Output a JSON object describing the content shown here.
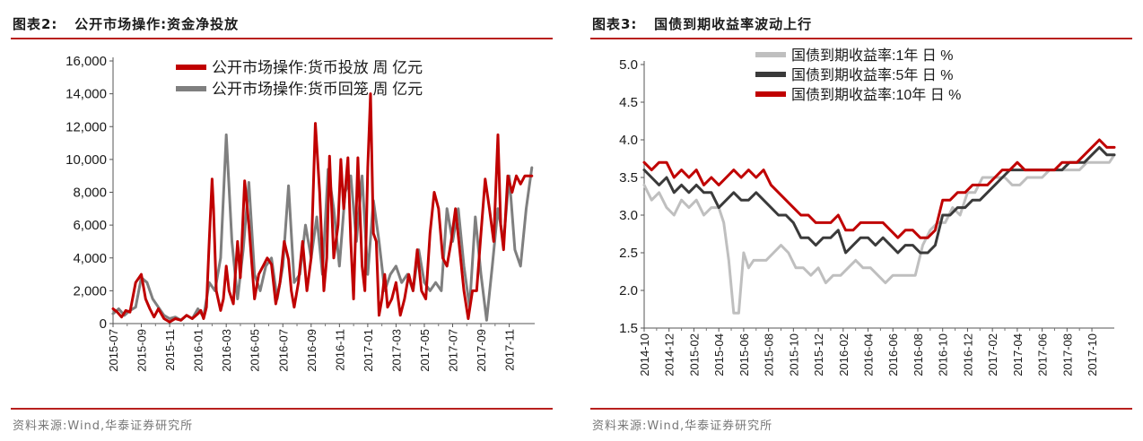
{
  "left": {
    "title_label": "图表2:",
    "title_text": "公开市场操作:资金净投放",
    "source": "资料来源:Wind,华泰证券研究所"
  },
  "right": {
    "title_label": "图表3:",
    "title_text": "国债到期收益率波动上行",
    "source": "资料来源:Wind,华泰证券研究所"
  },
  "chart_data": [
    {
      "type": "line",
      "title": "公开市场操作:资金净投放",
      "x_tick_labels": [
        "2015-07",
        "2015-09",
        "2015-11",
        "2016-01",
        "2016-03",
        "2016-05",
        "2016-07",
        "2016-09",
        "2016-11",
        "2017-01",
        "2017-03",
        "2017-05",
        "2017-07",
        "2017-09",
        "2017-11"
      ],
      "y_tick_labels": [
        "0",
        "2,000",
        "4,000",
        "6,000",
        "8,000",
        "10,000",
        "12,000",
        "14,000",
        "16,000"
      ],
      "ylim": [
        0,
        16000
      ],
      "x_range": [
        0,
        14.9
      ],
      "legend_position": "top-center",
      "grid": false,
      "series": [
        {
          "name": "公开市场操作:货币投放 周 亿元",
          "color": "#c00000",
          "x": [
            0,
            0.15,
            0.3,
            0.45,
            0.6,
            0.8,
            1.0,
            1.15,
            1.3,
            1.45,
            1.6,
            1.8,
            2.0,
            2.2,
            2.4,
            2.6,
            2.8,
            3.0,
            3.1,
            3.2,
            3.3,
            3.4,
            3.5,
            3.55,
            3.65,
            3.8,
            3.9,
            4.0,
            4.1,
            4.25,
            4.4,
            4.5,
            4.65,
            4.8,
            5.0,
            5.15,
            5.3,
            5.45,
            5.6,
            5.75,
            5.9,
            6.05,
            6.2,
            6.3,
            6.4,
            6.55,
            6.7,
            6.85,
            7.0,
            7.15,
            7.3,
            7.45,
            7.55,
            7.65,
            7.8,
            7.95,
            8.05,
            8.15,
            8.3,
            8.4,
            8.5,
            8.65,
            8.8,
            8.9,
            9.0,
            9.1,
            9.2,
            9.3,
            9.4,
            9.5,
            9.6,
            9.7,
            9.85,
            10.0,
            10.15,
            10.3,
            10.45,
            10.6,
            10.75,
            10.9,
            11.05,
            11.2,
            11.35,
            11.5,
            11.65,
            11.8,
            11.95,
            12.1,
            12.25,
            12.4,
            12.55,
            12.7,
            12.85,
            13.0,
            13.15,
            13.3,
            13.45,
            13.6,
            13.7,
            13.8,
            13.95,
            14.1,
            14.25,
            14.4,
            14.55,
            14.7,
            14.8
          ],
          "y": [
            900,
            700,
            400,
            800,
            700,
            2500,
            3000,
            1500,
            900,
            400,
            900,
            300,
            100,
            300,
            200,
            500,
            300,
            600,
            800,
            300,
            1000,
            5000,
            8800,
            7000,
            2000,
            800,
            1500,
            3500,
            2000,
            1200,
            5000,
            2800,
            8700,
            6000,
            1500,
            3000,
            3500,
            4000,
            3600,
            1200,
            2500,
            5000,
            3900,
            2000,
            1000,
            2500,
            5000,
            2000,
            4000,
            12200,
            8000,
            2000,
            4000,
            10200,
            4000,
            6000,
            10000,
            7000,
            10100,
            5000,
            1500,
            10100,
            3500,
            2000,
            9500,
            14000,
            5500,
            5000,
            500,
            1500,
            3000,
            1000,
            1500,
            2500,
            500,
            1500,
            3000,
            2000,
            4500,
            2000,
            1500,
            5500,
            8000,
            7000,
            4000,
            3500,
            5000,
            7000,
            4500,
            2000,
            300,
            2000,
            2000,
            5500,
            8800,
            7000,
            5000,
            11500,
            6000,
            4500,
            9000,
            8000,
            9000,
            8500,
            9000,
            9000,
            9000
          ],
          "y_shown": [
            900,
            700,
            400,
            800,
            700,
            2500,
            3000,
            1500,
            900,
            400,
            900,
            300,
            100,
            300,
            200,
            500,
            300,
            600,
            800,
            300,
            1000,
            5000,
            8800,
            7000,
            2000,
            800,
            1500,
            3500,
            2000,
            1200,
            5000,
            2800,
            8700,
            6000,
            1500,
            3000,
            3500,
            4000,
            3600,
            1200,
            2500,
            5000,
            3900,
            2000,
            1000,
            2500,
            5000,
            2000,
            4000,
            12200,
            8000,
            2000,
            4000,
            10200,
            4000,
            6000,
            10000,
            7000,
            10100,
            5000,
            1500,
            10100,
            3500,
            2000,
            9500,
            14000,
            5500,
            5000,
            500,
            1500,
            3000,
            1000,
            1500,
            2500,
            500,
            1500,
            3000,
            2000,
            4500,
            2000,
            1500,
            5500,
            8000,
            7000,
            4000,
            3500,
            5000,
            7000,
            4500,
            2000,
            300,
            2000,
            2000,
            5500,
            8800,
            7000,
            5000,
            11500,
            6000,
            4500,
            9000,
            8000,
            9000,
            8500,
            9000,
            9000,
            9000
          ]
        },
        {
          "name": "公开市场操作:货币回笼 周 亿元",
          "color": "#7f7f7f",
          "x": [
            0,
            0.2,
            0.4,
            0.6,
            0.8,
            1.0,
            1.2,
            1.4,
            1.6,
            1.8,
            2.0,
            2.2,
            2.4,
            2.6,
            2.8,
            3.0,
            3.2,
            3.4,
            3.6,
            3.8,
            4.0,
            4.2,
            4.4,
            4.6,
            4.8,
            5.0,
            5.2,
            5.4,
            5.6,
            5.8,
            6.0,
            6.2,
            6.4,
            6.6,
            6.8,
            7.0,
            7.2,
            7.4,
            7.6,
            7.8,
            8.0,
            8.2,
            8.4,
            8.6,
            8.8,
            9.0,
            9.2,
            9.4,
            9.6,
            9.8,
            10.0,
            10.2,
            10.4,
            10.6,
            10.8,
            11.0,
            11.2,
            11.4,
            11.6,
            11.8,
            12.0,
            12.2,
            12.4,
            12.6,
            12.8,
            13.0,
            13.2,
            13.4,
            13.6,
            13.8,
            14.0,
            14.2,
            14.4,
            14.6,
            14.8
          ],
          "y": [
            600,
            900,
            500,
            800,
            1000,
            2800,
            2500,
            1500,
            1000,
            500,
            300,
            400,
            200,
            500,
            300,
            900,
            400,
            2500,
            2000,
            4000,
            11500,
            5000,
            1500,
            4500,
            8600,
            3000,
            2000,
            3500,
            4000,
            1500,
            3500,
            8400,
            2500,
            3000,
            6000,
            4000,
            6500,
            3000,
            9400,
            7000,
            3500,
            8000,
            9000,
            5000,
            9000,
            3000,
            7500,
            5000,
            2000,
            3000,
            3500,
            2500,
            3000,
            2000,
            4500,
            2500,
            2000,
            2500,
            2000,
            7000,
            5000,
            7000,
            3500,
            1000,
            6500,
            3000,
            200,
            3500,
            7000,
            5000,
            9000,
            4500,
            3500,
            7000,
            9500
          ]
        }
      ]
    },
    {
      "type": "line",
      "title": "国债到期收益率波动上行",
      "x_tick_labels": [
        "2014-10",
        "2014-12",
        "2015-02",
        "2015-04",
        "2015-06",
        "2015-08",
        "2015-10",
        "2015-12",
        "2016-02",
        "2016-04",
        "2016-06",
        "2016-08",
        "2016-10",
        "2016-12",
        "2017-02",
        "2017-04",
        "2017-06",
        "2017-08",
        "2017-10"
      ],
      "y_tick_labels": [
        "1.5",
        "2.0",
        "2.5",
        "3.0",
        "3.5",
        "4.0",
        "4.5",
        "5.0"
      ],
      "ylim": [
        1.5,
        5.0
      ],
      "x_range": [
        0,
        18.9
      ],
      "legend_position": "top-center",
      "grid": false,
      "series": [
        {
          "name": "国债到期收益率:1年 日 %",
          "color": "#bfbfbf",
          "x": [
            0,
            0.3,
            0.6,
            0.9,
            1.2,
            1.5,
            1.8,
            2.1,
            2.4,
            2.7,
            3.0,
            3.2,
            3.4,
            3.6,
            3.8,
            4.0,
            4.2,
            4.4,
            4.6,
            4.9,
            5.2,
            5.5,
            5.8,
            6.1,
            6.4,
            6.7,
            7.0,
            7.3,
            7.6,
            7.9,
            8.2,
            8.5,
            8.8,
            9.1,
            9.4,
            9.7,
            10.0,
            10.3,
            10.6,
            10.9,
            11.2,
            11.5,
            11.8,
            12.1,
            12.4,
            12.7,
            13.0,
            13.3,
            13.6,
            13.9,
            14.2,
            14.5,
            14.8,
            15.1,
            15.4,
            15.7,
            16.0,
            16.3,
            16.6,
            16.9,
            17.2,
            17.5,
            17.8,
            18.1,
            18.4,
            18.7,
            18.9
          ],
          "y": [
            3.4,
            3.2,
            3.3,
            3.1,
            3.0,
            3.2,
            3.1,
            3.2,
            3.0,
            3.1,
            3.1,
            2.9,
            2.4,
            1.7,
            1.7,
            2.5,
            2.3,
            2.4,
            2.4,
            2.4,
            2.5,
            2.6,
            2.5,
            2.3,
            2.3,
            2.2,
            2.3,
            2.1,
            2.2,
            2.2,
            2.3,
            2.4,
            2.3,
            2.3,
            2.2,
            2.1,
            2.2,
            2.2,
            2.2,
            2.2,
            2.6,
            2.8,
            2.9,
            2.9,
            3.1,
            3.0,
            3.3,
            3.3,
            3.5,
            3.5,
            3.5,
            3.5,
            3.4,
            3.4,
            3.5,
            3.5,
            3.5,
            3.6,
            3.6,
            3.6,
            3.6,
            3.6,
            3.7,
            3.7,
            3.7,
            3.7,
            3.8
          ]
        },
        {
          "name": "国债到期收益率:5年 日 %",
          "color": "#3a3a3a",
          "x": [
            0,
            0.3,
            0.6,
            0.9,
            1.2,
            1.5,
            1.8,
            2.1,
            2.4,
            2.7,
            3.0,
            3.3,
            3.6,
            3.9,
            4.2,
            4.5,
            4.8,
            5.1,
            5.4,
            5.7,
            6.0,
            6.3,
            6.6,
            6.9,
            7.2,
            7.5,
            7.8,
            8.1,
            8.4,
            8.7,
            9.0,
            9.3,
            9.6,
            9.9,
            10.2,
            10.5,
            10.8,
            11.1,
            11.4,
            11.7,
            12.0,
            12.3,
            12.6,
            12.9,
            13.2,
            13.5,
            13.8,
            14.1,
            14.4,
            14.7,
            15.0,
            15.3,
            15.6,
            15.9,
            16.2,
            16.5,
            16.8,
            17.1,
            17.4,
            17.7,
            18.0,
            18.3,
            18.6,
            18.9
          ],
          "y": [
            3.6,
            3.5,
            3.4,
            3.5,
            3.3,
            3.4,
            3.3,
            3.4,
            3.3,
            3.3,
            3.1,
            3.2,
            3.3,
            3.2,
            3.2,
            3.3,
            3.2,
            3.1,
            3.0,
            3.0,
            2.9,
            2.7,
            2.7,
            2.6,
            2.7,
            2.7,
            2.8,
            2.5,
            2.6,
            2.7,
            2.7,
            2.6,
            2.7,
            2.6,
            2.5,
            2.6,
            2.6,
            2.5,
            2.5,
            2.6,
            3.0,
            3.0,
            3.1,
            3.1,
            3.2,
            3.2,
            3.3,
            3.4,
            3.5,
            3.6,
            3.6,
            3.6,
            3.6,
            3.6,
            3.6,
            3.6,
            3.6,
            3.7,
            3.7,
            3.7,
            3.8,
            3.9,
            3.8,
            3.8
          ]
        },
        {
          "name": "国债到期收益率:10年 日 %",
          "color": "#c00000",
          "x": [
            0,
            0.3,
            0.6,
            0.9,
            1.2,
            1.5,
            1.8,
            2.1,
            2.4,
            2.7,
            3.0,
            3.3,
            3.6,
            3.9,
            4.2,
            4.5,
            4.8,
            5.1,
            5.4,
            5.7,
            6.0,
            6.3,
            6.6,
            6.9,
            7.2,
            7.5,
            7.8,
            8.1,
            8.4,
            8.7,
            9.0,
            9.3,
            9.6,
            9.9,
            10.2,
            10.5,
            10.8,
            11.1,
            11.4,
            11.7,
            12.0,
            12.3,
            12.6,
            12.9,
            13.2,
            13.5,
            13.8,
            14.1,
            14.4,
            14.7,
            15.0,
            15.3,
            15.6,
            15.9,
            16.2,
            16.5,
            16.8,
            17.1,
            17.4,
            17.7,
            18.0,
            18.3,
            18.6,
            18.9
          ],
          "y": [
            3.7,
            3.6,
            3.7,
            3.7,
            3.5,
            3.6,
            3.5,
            3.6,
            3.4,
            3.5,
            3.4,
            3.5,
            3.6,
            3.5,
            3.6,
            3.5,
            3.6,
            3.4,
            3.3,
            3.2,
            3.1,
            3.0,
            3.0,
            2.9,
            2.9,
            2.9,
            3.0,
            2.8,
            2.8,
            2.9,
            2.9,
            2.9,
            2.9,
            2.8,
            2.7,
            2.8,
            2.8,
            2.7,
            2.7,
            2.8,
            3.2,
            3.2,
            3.3,
            3.3,
            3.4,
            3.4,
            3.4,
            3.5,
            3.6,
            3.6,
            3.7,
            3.6,
            3.6,
            3.6,
            3.6,
            3.6,
            3.7,
            3.7,
            3.7,
            3.8,
            3.9,
            4.0,
            3.9,
            3.9
          ]
        }
      ]
    }
  ]
}
